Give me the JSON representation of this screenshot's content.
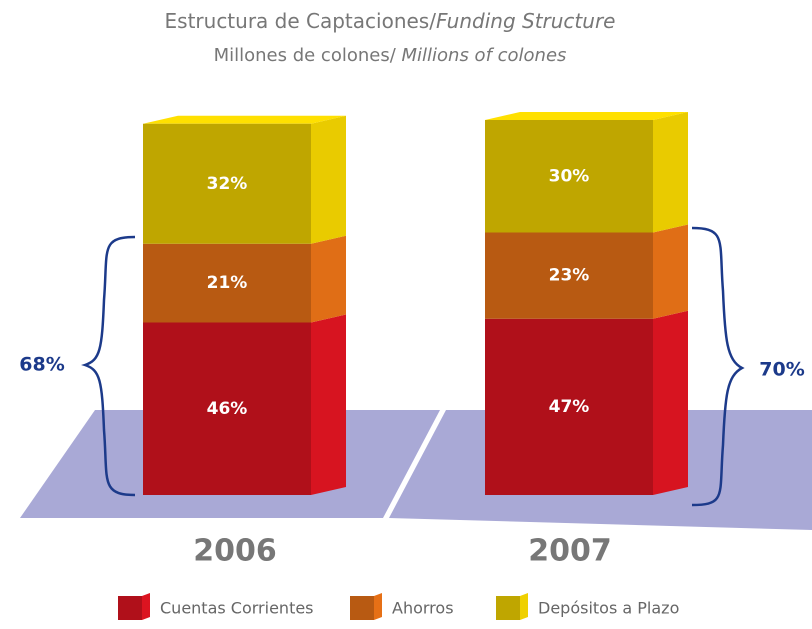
{
  "chart_data": {
    "type": "bar",
    "stacked": true,
    "title": [
      "Estructura de Captaciones/",
      "Funding Structure"
    ],
    "subtitle": [
      "Millones de colones/ ",
      "Millions of colones"
    ],
    "categories": [
      "2006",
      "2007"
    ],
    "series": [
      {
        "name": "Cuentas Corrientes",
        "color": "#b0101a",
        "values": [
          46,
          47
        ],
        "value_labels": [
          "46%",
          "47%"
        ]
      },
      {
        "name": "Ahorros",
        "color": "#b85a12",
        "values": [
          21,
          23
        ],
        "value_labels": [
          "21%",
          "23%"
        ]
      },
      {
        "name": "Depósitos a Plazo",
        "color": "#bfa600",
        "values": [
          32,
          30
        ],
        "value_labels": [
          "32%",
          "30%"
        ]
      }
    ],
    "annotations": [
      "68%",
      "70%"
    ]
  }
}
